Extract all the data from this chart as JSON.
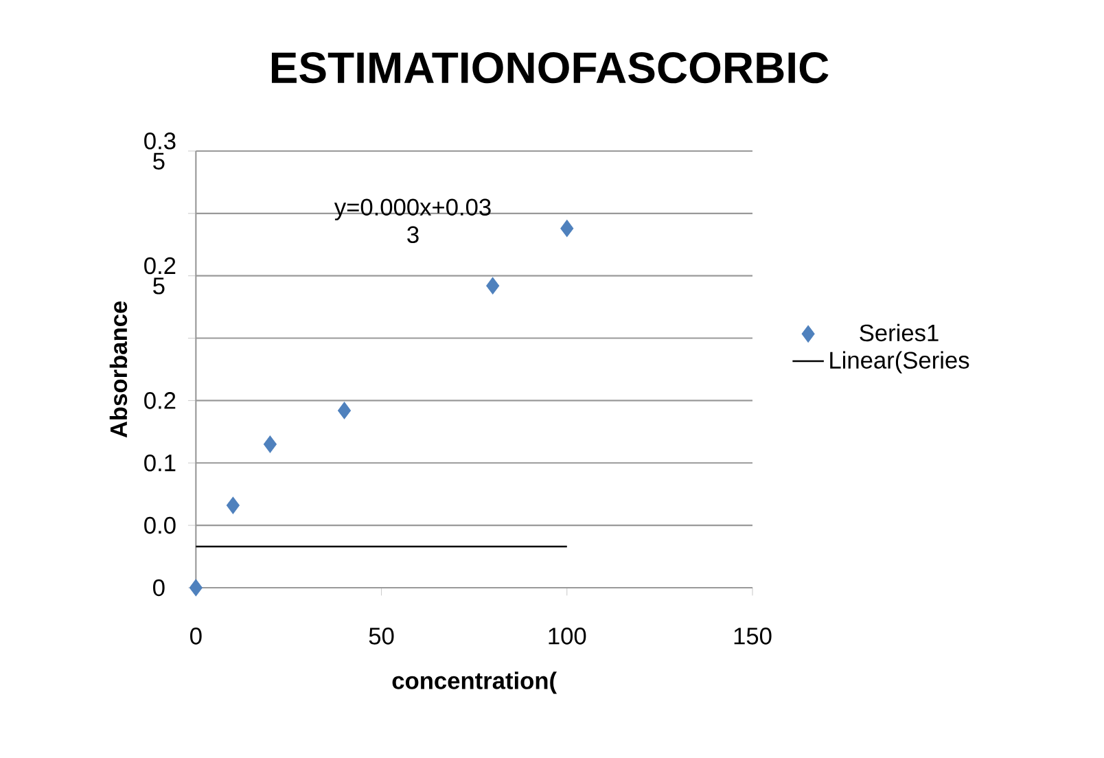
{
  "chart_data": {
    "type": "scatter",
    "title": "ESTIMATIONOFASCORBIC",
    "xlabel": "concentration(",
    "ylabel": "Absorbance",
    "xlim": [
      0,
      150
    ],
    "xticks": [
      0,
      50,
      100,
      150
    ],
    "ylim": [
      0,
      0.35
    ],
    "yticks": [
      {
        "value": 0,
        "label": "0"
      },
      {
        "value": 0.05,
        "label": "0.0"
      },
      {
        "value": 0.1,
        "label": "0.1"
      },
      {
        "value": 0.15,
        "label": "0.2"
      },
      {
        "value": 0.2,
        "label": null
      },
      {
        "value": 0.25,
        "label": "0.2 5"
      },
      {
        "value": 0.3,
        "label": null
      },
      {
        "value": 0.35,
        "label": "0.3 5"
      }
    ],
    "grid": "y",
    "legend": "right",
    "marker": "diamond",
    "series": [
      {
        "name": "Series1",
        "color": "#4f81bd",
        "x": [
          0,
          10,
          20,
          40,
          80,
          100
        ],
        "values": [
          0,
          0.066,
          0.115,
          0.142,
          0.242,
          0.288
        ]
      },
      {
        "name": "Linear(Series",
        "type": "line",
        "color": "#000000",
        "marker": "none",
        "x": [
          0,
          100
        ],
        "values": [
          0.033,
          0.033
        ]
      }
    ],
    "annotations": [
      "y=0.000x+0.03 3"
    ]
  }
}
